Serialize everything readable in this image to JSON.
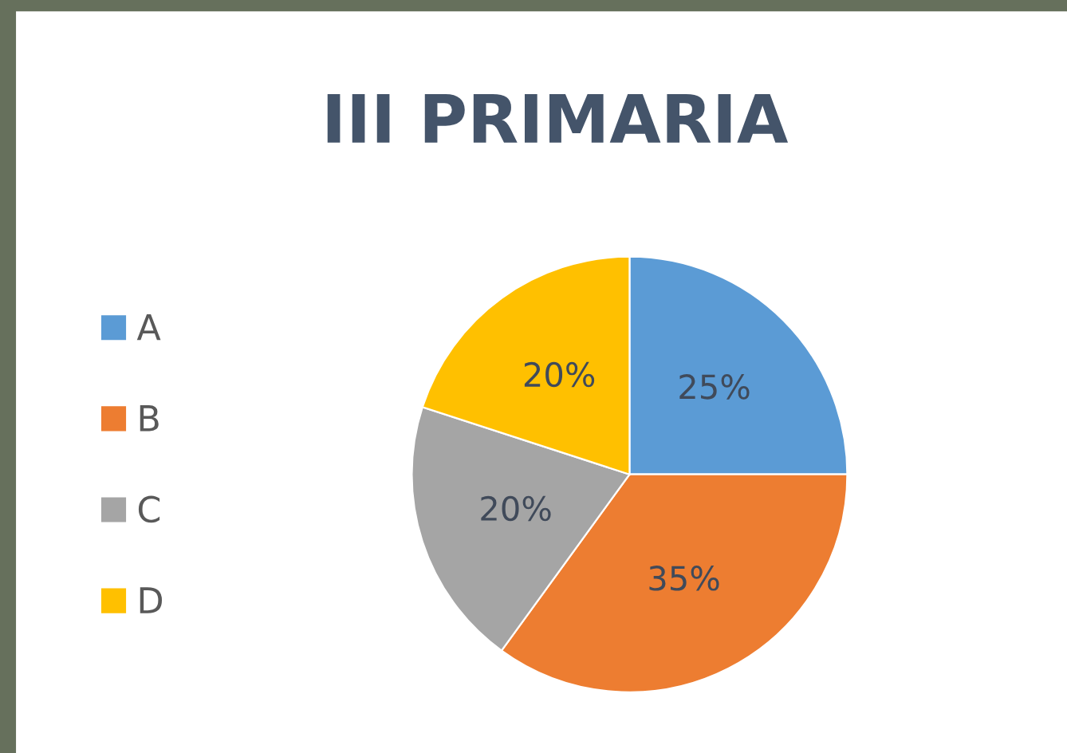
{
  "chart_data": {
    "type": "pie",
    "title": "III PRIMARIA",
    "categories": [
      "A",
      "B",
      "C",
      "D"
    ],
    "values": [
      25,
      35,
      20,
      20
    ],
    "value_labels": [
      "25%",
      "35%",
      "20%",
      "20%"
    ],
    "colors": [
      "#5b9bd5",
      "#ed7d31",
      "#a5a5a5",
      "#ffc000"
    ],
    "legend": "left"
  }
}
